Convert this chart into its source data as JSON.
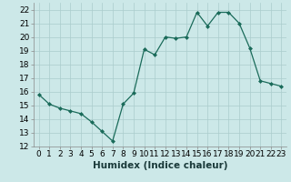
{
  "x": [
    0,
    1,
    2,
    3,
    4,
    5,
    6,
    7,
    8,
    9,
    10,
    11,
    12,
    13,
    14,
    15,
    16,
    17,
    18,
    19,
    20,
    21,
    22,
    23
  ],
  "y": [
    15.8,
    15.1,
    14.8,
    14.6,
    14.4,
    13.8,
    13.1,
    12.4,
    15.1,
    15.9,
    19.1,
    18.7,
    20.0,
    19.9,
    20.0,
    21.8,
    20.8,
    21.8,
    21.8,
    21.0,
    19.2,
    16.8,
    16.6,
    16.4
  ],
  "xlabel": "Humidex (Indice chaleur)",
  "ylim": [
    12,
    22.5
  ],
  "xlim": [
    -0.5,
    23.5
  ],
  "yticks": [
    12,
    13,
    14,
    15,
    16,
    17,
    18,
    19,
    20,
    21,
    22
  ],
  "xticks": [
    0,
    1,
    2,
    3,
    4,
    5,
    6,
    7,
    8,
    9,
    10,
    11,
    12,
    13,
    14,
    15,
    16,
    17,
    18,
    19,
    20,
    21,
    22,
    23
  ],
  "line_color": "#1a6b5a",
  "marker": "D",
  "marker_size": 2.0,
  "bg_color": "#cce8e8",
  "grid_color": "#aacccc",
  "label_fontsize": 7.5,
  "tick_fontsize": 6.5
}
